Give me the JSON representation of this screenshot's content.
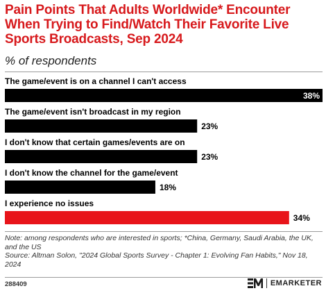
{
  "header": {
    "title": "Pain Points That Adults Worldwide* Encounter When Trying to Find/Watch Their Favorite Live Sports Broadcasts, Sep 2024",
    "subtitle": "% of respondents"
  },
  "chart_data": {
    "type": "bar",
    "orientation": "horizontal",
    "title": "Pain Points That Adults Worldwide* Encounter When Trying to Find/Watch Their Favorite Live Sports Broadcasts, Sep 2024",
    "subtitle": "% of respondents",
    "categories": [
      "The game/event is on a channel I can't access",
      "The game/event isn't broadcast in my region",
      "I don't know that certain games/events are on",
      "I don't know the channel for the game/event",
      "I experience no issues"
    ],
    "values": [
      38,
      23,
      23,
      18,
      34
    ],
    "value_labels": [
      "38%",
      "23%",
      "23%",
      "18%",
      "34%"
    ],
    "bar_colors": [
      "#000000",
      "#000000",
      "#000000",
      "#000000",
      "#e8141a"
    ],
    "xlim": [
      0,
      38
    ],
    "grid": false,
    "legend": "none"
  },
  "footer": {
    "note": "Note: among respondents who are interested in sports; *China, Germany, Saudi Arabia, the UK, and the US",
    "source": "Source: Altman Solon, \"2024 Global Sports Survey - Chapter 1: Evolving Fan Habits,\" Nov 18, 2024",
    "chart_id": "288409",
    "brand": "EMARKETER"
  },
  "colors": {
    "title": "#d7191c",
    "bar_default": "#000000",
    "bar_highlight": "#e8141a",
    "brand_mark": "#1a1a1a"
  },
  "icons": {
    "brand_logo": "em-logo-icon"
  }
}
